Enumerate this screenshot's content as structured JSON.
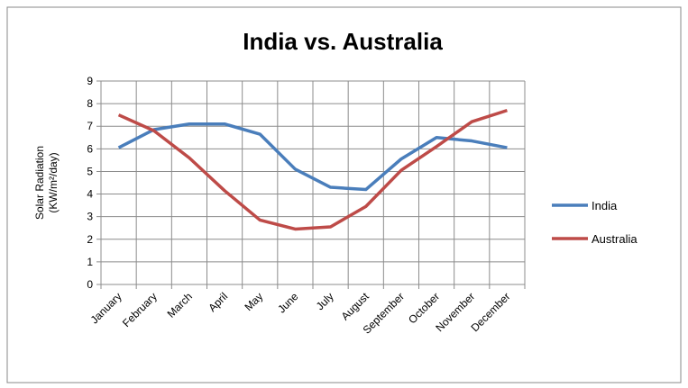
{
  "chart_data": {
    "type": "line",
    "title": "India vs. Australia",
    "xlabel": "",
    "ylabel_lines": [
      "Solar Radiation",
      "(KW/m²/day)"
    ],
    "categories": [
      "January",
      "February",
      "March",
      "April",
      "May",
      "June",
      "July",
      "August",
      "September",
      "October",
      "November",
      "December"
    ],
    "ylim": [
      0,
      9
    ],
    "yticks": [
      "0",
      "1",
      "2",
      "3",
      "4",
      "5",
      "6",
      "7",
      "8",
      "9"
    ],
    "grid": true,
    "legend": "right",
    "series": [
      {
        "name": "India",
        "color": "#4a7ebb",
        "values": [
          6.05,
          6.85,
          7.1,
          7.1,
          6.65,
          5.1,
          4.3,
          4.2,
          5.55,
          6.5,
          6.35,
          6.05
        ]
      },
      {
        "name": "Australia",
        "color": "#be4b48",
        "values": [
          7.5,
          6.8,
          5.6,
          4.15,
          2.85,
          2.45,
          2.55,
          3.45,
          5.05,
          6.1,
          7.2,
          7.7
        ]
      }
    ]
  }
}
